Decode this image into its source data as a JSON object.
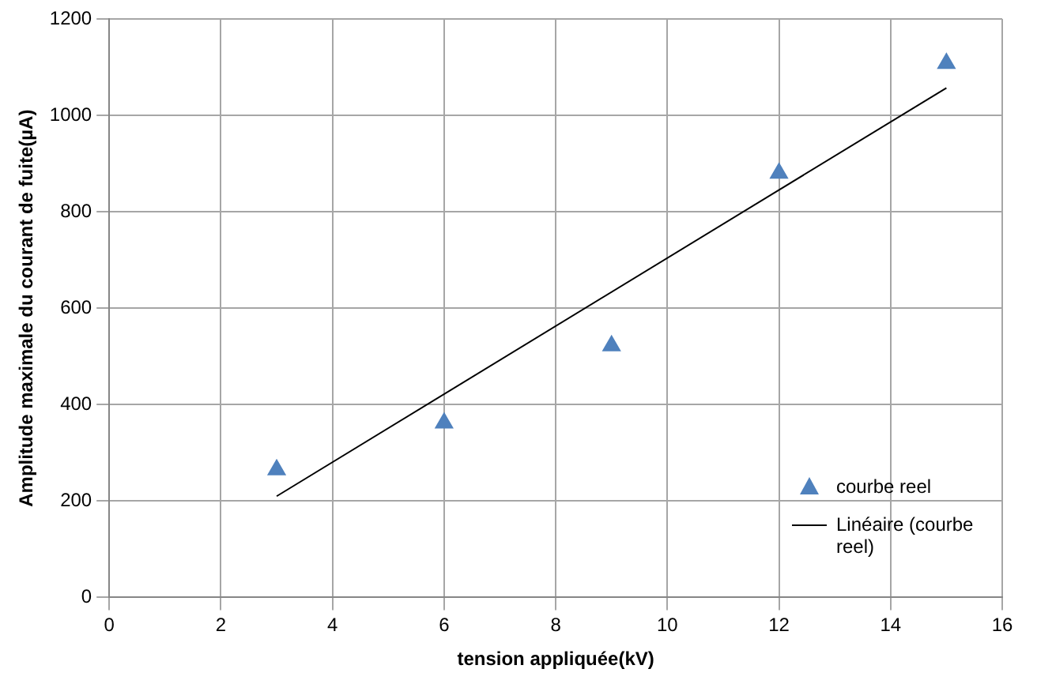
{
  "chart_data": {
    "type": "scatter",
    "xlabel": "tension appliquée(kV)",
    "ylabel": "Amplitude maximale du courant de fuite(µA)",
    "series": [
      {
        "name": "courbe reel",
        "type": "scatter",
        "color": "#4f81bd",
        "marker": "triangle",
        "x": [
          3,
          6,
          9,
          12,
          15
        ],
        "values": [
          265,
          362,
          522,
          880,
          1108
        ]
      },
      {
        "name": "Linéaire (courbe reel)",
        "type": "line",
        "color": "#000000",
        "marker": "none",
        "x": [
          3,
          15
        ],
        "values": [
          210,
          1057
        ]
      }
    ],
    "xlim": [
      0,
      16
    ],
    "xticks": [
      0,
      2,
      4,
      6,
      8,
      10,
      12,
      14,
      16
    ],
    "ylim": [
      0,
      1200
    ],
    "yticks": [
      0,
      200,
      400,
      600,
      800,
      1000,
      1200
    ],
    "grid": true,
    "legend": "bottom right"
  }
}
